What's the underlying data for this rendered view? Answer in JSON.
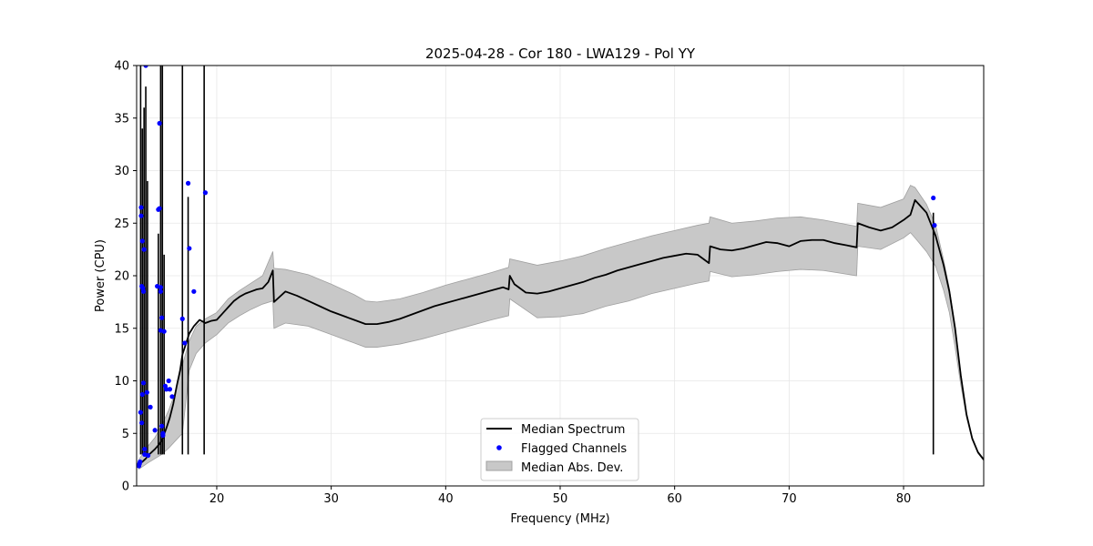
{
  "chart_data": {
    "type": "line",
    "title": "2025-04-28 - Cor 180 - LWA129 - Pol YY",
    "xlabel": "Frequency (MHz)",
    "ylabel": "Power (CPU)",
    "xlim": [
      13.0,
      87.0
    ],
    "ylim": [
      0,
      40
    ],
    "xticks": [
      20,
      30,
      40,
      50,
      60,
      70,
      80
    ],
    "xtick_labels": [
      "20",
      "30",
      "40",
      "50",
      "60",
      "70",
      "80"
    ],
    "yticks": [
      0,
      5,
      10,
      15,
      20,
      25,
      30,
      35,
      40
    ],
    "ytick_labels": [
      "0",
      "5",
      "10",
      "15",
      "20",
      "25",
      "30",
      "35",
      "40"
    ],
    "grid": true,
    "legend_position": "bottom-center",
    "legend": [
      {
        "label": "Median Spectrum",
        "kind": "line"
      },
      {
        "label": "Flagged Channels",
        "kind": "marker"
      },
      {
        "label": "Median Abs. Dev.",
        "kind": "band"
      }
    ],
    "colors": {
      "line": "#000000",
      "marker": "#0000ff",
      "band": "#c8c8c8",
      "band_edge": "#a0a0a0"
    },
    "median_spectrum": {
      "x": [
        13.2,
        13.4,
        13.6,
        13.8,
        14.0,
        14.3,
        14.6,
        15.0,
        15.3,
        15.6,
        15.9,
        16.2,
        16.5,
        16.8,
        17.0,
        17.3,
        17.6,
        18.0,
        18.5,
        19.0,
        19.5,
        20.0,
        20.5,
        21.0,
        21.5,
        22.0,
        22.5,
        23.0,
        23.5,
        24.0,
        24.5,
        24.9,
        25.0,
        26.0,
        27.0,
        28.0,
        29.0,
        30.0,
        31.0,
        32.0,
        33.0,
        34.0,
        35.0,
        36.0,
        37.0,
        38.0,
        39.0,
        40.0,
        41.0,
        42.0,
        43.0,
        44.0,
        45.0,
        45.5,
        45.6,
        46.0,
        47.0,
        48.0,
        49.0,
        50.0,
        51.0,
        52.0,
        53.0,
        54.0,
        55.0,
        56.0,
        57.0,
        58.0,
        59.0,
        60.0,
        61.0,
        62.0,
        63.0,
        63.1,
        64.0,
        65.0,
        66.0,
        67.0,
        68.0,
        69.0,
        70.0,
        71.0,
        72.0,
        73.0,
        74.0,
        75.0,
        75.9,
        76.0,
        77.0,
        78.0,
        79.0,
        80.0,
        80.6,
        81.0,
        82.0,
        82.8,
        83.5,
        84.0,
        84.5,
        85.0,
        85.5,
        86.0,
        86.5,
        87.0
      ],
      "y": [
        2.0,
        2.2,
        2.4,
        2.6,
        2.9,
        3.2,
        3.5,
        4.0,
        4.6,
        5.5,
        6.5,
        7.8,
        9.5,
        11.0,
        12.5,
        13.5,
        14.5,
        15.2,
        15.8,
        15.5,
        15.7,
        15.8,
        16.4,
        17.0,
        17.6,
        18.0,
        18.3,
        18.5,
        18.7,
        18.8,
        19.4,
        20.5,
        17.5,
        18.5,
        18.1,
        17.6,
        17.1,
        16.6,
        16.2,
        15.8,
        15.4,
        15.4,
        15.6,
        15.9,
        16.3,
        16.7,
        17.1,
        17.4,
        17.7,
        18.0,
        18.3,
        18.6,
        18.9,
        18.7,
        20.0,
        19.2,
        18.4,
        18.3,
        18.5,
        18.8,
        19.1,
        19.4,
        19.8,
        20.1,
        20.5,
        20.8,
        21.1,
        21.4,
        21.7,
        21.9,
        22.1,
        22.0,
        21.2,
        22.8,
        22.5,
        22.4,
        22.6,
        22.9,
        23.2,
        23.1,
        22.8,
        23.3,
        23.4,
        23.4,
        23.1,
        22.9,
        22.7,
        25.0,
        24.6,
        24.3,
        24.6,
        25.3,
        25.8,
        27.2,
        26.0,
        23.8,
        21.0,
        18.5,
        15.0,
        10.5,
        6.8,
        4.5,
        3.2,
        2.5
      ]
    },
    "mad_band": {
      "x": [
        13.2,
        13.6,
        14.0,
        14.6,
        15.2,
        15.8,
        16.4,
        17.0,
        17.6,
        18.2,
        19.0,
        20.0,
        21.0,
        22.0,
        23.0,
        24.0,
        24.9,
        25.0,
        26.0,
        28.0,
        30.0,
        32.0,
        33.0,
        34.0,
        36.0,
        38.0,
        40.0,
        42.0,
        44.0,
        45.5,
        45.6,
        48.0,
        50.0,
        52.0,
        54.0,
        56.0,
        58.0,
        60.0,
        62.0,
        63.0,
        63.1,
        65.0,
        67.0,
        69.0,
        71.0,
        73.0,
        75.9,
        76.0,
        78.0,
        80.0,
        80.6,
        81.0,
        82.0,
        82.8,
        83.5,
        84.0,
        84.5,
        85.0,
        85.5,
        86.0,
        86.5,
        87.0
      ],
      "upper": [
        2.5,
        3.2,
        3.8,
        4.6,
        5.8,
        7.2,
        9.0,
        11.5,
        13.8,
        15.2,
        15.9,
        16.5,
        17.8,
        18.6,
        19.3,
        20.0,
        22.3,
        20.7,
        20.6,
        20.1,
        19.2,
        18.2,
        17.6,
        17.5,
        17.8,
        18.4,
        19.1,
        19.7,
        20.3,
        20.8,
        21.6,
        21.0,
        21.4,
        21.9,
        22.6,
        23.2,
        23.8,
        24.3,
        24.8,
        25.0,
        25.6,
        25.0,
        25.2,
        25.5,
        25.6,
        25.3,
        24.7,
        26.9,
        26.5,
        27.3,
        28.6,
        28.4,
        26.8,
        24.8,
        21.5,
        18.8,
        15.2,
        10.7,
        6.9,
        4.6,
        3.3,
        2.6
      ],
      "lower": [
        1.6,
        1.9,
        2.2,
        2.6,
        3.0,
        3.6,
        4.3,
        5.0,
        11.0,
        12.6,
        13.6,
        14.4,
        15.5,
        16.2,
        16.8,
        17.3,
        17.6,
        15.0,
        15.5,
        15.2,
        14.4,
        13.6,
        13.2,
        13.2,
        13.5,
        14.0,
        14.6,
        15.2,
        15.8,
        16.2,
        17.8,
        16.0,
        16.1,
        16.4,
        17.1,
        17.6,
        18.3,
        18.8,
        19.3,
        19.5,
        20.4,
        19.9,
        20.1,
        20.4,
        20.6,
        20.5,
        20.0,
        22.8,
        22.5,
        23.6,
        24.1,
        23.6,
        22.3,
        20.9,
        18.6,
        16.5,
        13.2,
        9.6,
        6.5,
        4.4,
        3.1,
        2.4
      ]
    },
    "spikes": [
      {
        "x": 13.35,
        "y": 40.0
      },
      {
        "x": 13.5,
        "y": 34.0
      },
      {
        "x": 13.65,
        "y": 36.0
      },
      {
        "x": 13.8,
        "y": 38.0
      },
      {
        "x": 13.95,
        "y": 29.0
      },
      {
        "x": 14.9,
        "y": 24.0
      },
      {
        "x": 15.1,
        "y": 40.0
      },
      {
        "x": 15.25,
        "y": 40.0
      },
      {
        "x": 15.4,
        "y": 22.0
      },
      {
        "x": 17.0,
        "y": 40.0
      },
      {
        "x": 17.5,
        "y": 27.5
      },
      {
        "x": 18.9,
        "y": 40.0
      },
      {
        "x": 82.6,
        "y": 26.0
      }
    ],
    "flagged_channels": {
      "x": [
        13.2,
        13.25,
        13.3,
        13.35,
        13.4,
        13.4,
        13.45,
        13.45,
        13.5,
        13.5,
        13.55,
        13.6,
        13.6,
        13.65,
        13.7,
        13.7,
        13.8,
        13.9,
        14.0,
        14.2,
        14.6,
        14.8,
        14.9,
        15.0,
        15.0,
        15.1,
        15.1,
        15.1,
        15.2,
        15.2,
        15.3,
        15.3,
        15.4,
        15.5,
        15.6,
        15.8,
        15.9,
        16.1,
        17.0,
        17.2,
        17.5,
        17.6,
        18.0,
        19.0,
        82.6,
        82.7
      ],
      "y": [
        1.9,
        2.1,
        2.3,
        7.0,
        26.5,
        25.7,
        19.0,
        6.0,
        23.3,
        8.7,
        18.8,
        9.8,
        18.5,
        22.5,
        3.0,
        3.5,
        40.0,
        8.9,
        2.9,
        7.5,
        5.3,
        19.0,
        26.3,
        26.4,
        34.5,
        18.9,
        18.5,
        14.8,
        16.0,
        5.7,
        4.8,
        5.0,
        14.7,
        9.5,
        9.2,
        10.0,
        9.2,
        8.5,
        15.9,
        13.6,
        28.8,
        22.6,
        18.5,
        27.9,
        27.4,
        24.8
      ]
    }
  }
}
